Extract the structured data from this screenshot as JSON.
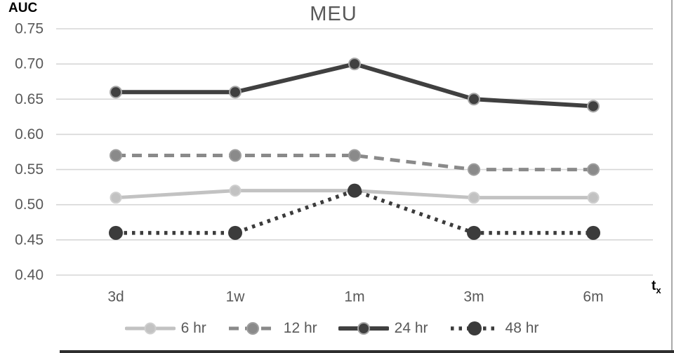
{
  "chart_data": {
    "type": "line",
    "title": "MEU",
    "y_axis_title": "AUC",
    "x_axis_title_main": "t",
    "x_axis_title_sub": "x",
    "categories": [
      "3d",
      "1w",
      "1m",
      "3m",
      "6m"
    ],
    "y_ticks": [
      "0.75",
      "0.70",
      "0.65",
      "0.60",
      "0.55",
      "0.50",
      "0.45",
      "0.40"
    ],
    "ylim": [
      0.4,
      0.75
    ],
    "grid": true,
    "legend_position": "bottom",
    "series": [
      {
        "name": "6 hr",
        "values": [
          0.51,
          0.52,
          0.52,
          0.51,
          0.51
        ],
        "color": "#c2c2c2",
        "dash": "",
        "line_width": 5,
        "marker_radius": 7.5,
        "marker_ring": "#cfcfcf"
      },
      {
        "name": "12 hr",
        "values": [
          0.57,
          0.57,
          0.57,
          0.55,
          0.55
        ],
        "color": "#8a8a8a",
        "dash": "14 9",
        "line_width": 5,
        "marker_radius": 8,
        "marker_ring": "#9e9e9e"
      },
      {
        "name": "24 hr",
        "values": [
          0.66,
          0.66,
          0.7,
          0.65,
          0.64
        ],
        "color": "#404040",
        "dash": "",
        "line_width": 6,
        "marker_radius": 8,
        "marker_ring": "#a6a6a6"
      },
      {
        "name": "48 hr",
        "values": [
          0.46,
          0.46,
          0.52,
          0.46,
          0.46
        ],
        "color": "#3b3b3b",
        "dash": "4.5 7",
        "line_width": 5.5,
        "marker_radius": 10,
        "marker_ring": "none"
      }
    ]
  },
  "colors": {
    "grid": "#d6d6d6",
    "tick_label": "#595959",
    "title": "#595959",
    "axis_title": "#000000",
    "right_border": "#a9a9a9",
    "bottom_border": "#2e2e2e"
  }
}
